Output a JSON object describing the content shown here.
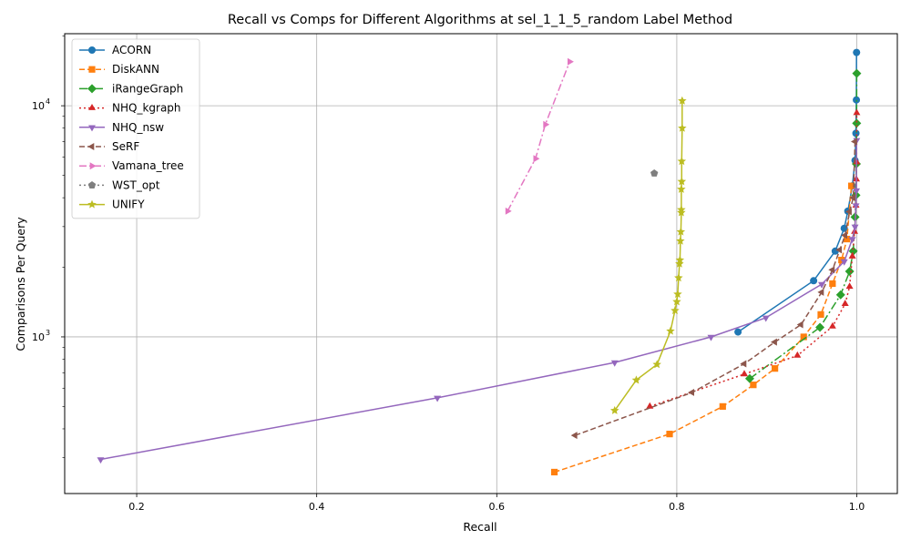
{
  "chart_data": {
    "type": "line",
    "title": "Recall vs Comps for Different Algorithms at sel_1_1_5_random Label Method",
    "xlabel": "Recall",
    "ylabel": "Comparisons Per Query",
    "xlim": [
      0.12,
      1.045
    ],
    "ylim": [
      210,
      20500
    ],
    "y_scale": "log",
    "x_ticks": [
      0.2,
      0.4,
      0.6,
      0.8,
      1.0
    ],
    "x_tick_labels": [
      "0.2",
      "0.4",
      "0.6",
      "0.8",
      "1.0"
    ],
    "y_ticks": [
      1000,
      10000
    ],
    "y_tick_base": "10",
    "y_tick_exponents": [
      "3",
      "4"
    ],
    "grid": true,
    "legend_position": "top-left",
    "series": [
      {
        "name": "ACORN",
        "color": "#1f77b4",
        "dash": "",
        "marker": "circle",
        "x": [
          0.868,
          0.952,
          0.976,
          0.986,
          0.99,
          0.995,
          0.998,
          0.999,
          0.9995,
          0.9997
        ],
        "y": [
          1050,
          1750,
          2350,
          2950,
          3500,
          4500,
          5800,
          7600,
          10600,
          17000
        ]
      },
      {
        "name": "DiskANN",
        "color": "#ff7f0e",
        "dash": "6,3",
        "marker": "square",
        "x": [
          0.664,
          0.792,
          0.851,
          0.885,
          0.909,
          0.941,
          0.96,
          0.973,
          0.983,
          0.989,
          0.994
        ],
        "y": [
          260,
          380,
          500,
          620,
          730,
          1000,
          1250,
          1700,
          2150,
          2650,
          4500
        ]
      },
      {
        "name": "iRangeGraph",
        "color": "#2ca02c",
        "dash": "9,3,2,3",
        "marker": "diamond",
        "x": [
          0.881,
          0.959,
          0.982,
          0.992,
          0.996,
          0.998,
          0.999,
          0.9995,
          0.9998,
          0.9999
        ],
        "y": [
          660,
          1100,
          1520,
          1920,
          2350,
          3300,
          4100,
          5600,
          8400,
          13800
        ]
      },
      {
        "name": "NHQ_kgraph",
        "color": "#d62728",
        "dash": "2,3",
        "marker": "triangle-up",
        "x": [
          0.77,
          0.875,
          0.934,
          0.973,
          0.987,
          0.992,
          0.995,
          0.9975,
          0.999,
          0.9995,
          0.9998,
          0.9999
        ],
        "y": [
          500,
          690,
          830,
          1110,
          1390,
          1650,
          2230,
          2850,
          3700,
          4800,
          5700,
          9300
        ]
      },
      {
        "name": "NHQ_nsw",
        "color": "#9467bd",
        "dash": "",
        "marker": "triangle-down",
        "x": [
          0.16,
          0.534,
          0.731,
          0.838,
          0.899,
          0.961,
          0.986,
          0.995,
          0.998,
          0.999,
          0.9995,
          0.9998
        ],
        "y": [
          295,
          545,
          775,
          1000,
          1210,
          1690,
          2120,
          2650,
          3000,
          3700,
          4300,
          7100
        ]
      },
      {
        "name": "SeRF",
        "color": "#8c564b",
        "dash": "6,3",
        "marker": "triangle-left",
        "x": [
          0.687,
          0.817,
          0.875,
          0.909,
          0.938,
          0.961,
          0.973,
          0.981,
          0.987,
          0.992,
          0.996,
          0.998
        ],
        "y": [
          375,
          575,
          765,
          950,
          1130,
          1560,
          1950,
          2380,
          2750,
          3480,
          4000,
          7000
        ]
      },
      {
        "name": "Vamana_tree",
        "color": "#e377c2",
        "dash": "8,3,2,3",
        "marker": "triangle-right",
        "x": [
          0.612,
          0.643,
          0.654,
          0.681
        ],
        "y": [
          3500,
          5900,
          8300,
          15500
        ]
      },
      {
        "name": "WST_opt",
        "color": "#7f7f7f",
        "dash": "2,3",
        "marker": "pentagon",
        "x": [
          0.775
        ],
        "y": [
          5100
        ]
      },
      {
        "name": "UNIFY",
        "color": "#bcbd22",
        "dash": "",
        "marker": "star",
        "x": [
          0.731,
          0.755,
          0.778,
          0.793,
          0.798,
          0.8,
          0.801,
          0.802,
          0.803,
          0.8035,
          0.804,
          0.8045,
          0.805,
          0.805,
          0.805,
          0.8055,
          0.8055,
          0.806,
          0.806
        ],
        "y": [
          480,
          650,
          760,
          1060,
          1300,
          1420,
          1530,
          1800,
          2070,
          2150,
          2600,
          2850,
          3450,
          3550,
          4350,
          4700,
          5750,
          8000,
          10500
        ]
      }
    ]
  }
}
